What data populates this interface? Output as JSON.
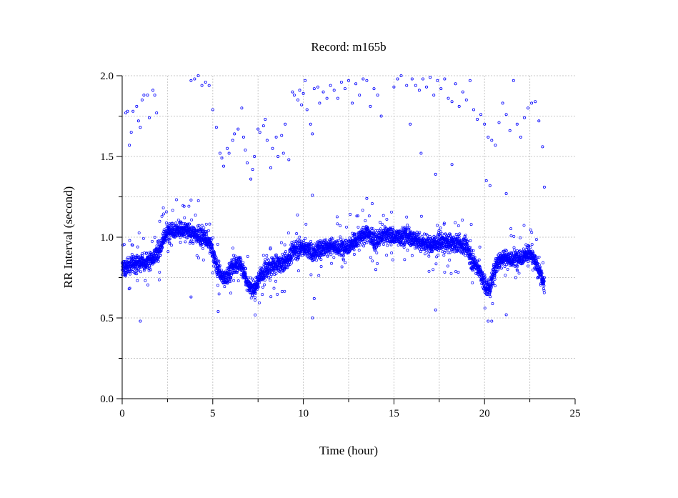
{
  "chart_data": {
    "type": "scatter",
    "title": "Record:  m165b",
    "xlabel": "Time (hour)",
    "ylabel": "RR Interval (second)",
    "xlim": [
      0,
      25
    ],
    "ylim": [
      0,
      2
    ],
    "x_ticks": [
      0,
      5,
      10,
      15,
      20,
      25
    ],
    "x_tick_labels": [
      "0",
      "5",
      "10",
      "15",
      "20",
      "25"
    ],
    "x_minor_ticks": [
      2.5,
      7.5,
      12.5,
      17.5,
      22.5
    ],
    "y_ticks": [
      0,
      0.5,
      1,
      1.5,
      2
    ],
    "y_tick_labels": [
      "0.0",
      "0.5",
      "1.0",
      "1.5",
      "2.0"
    ],
    "y_minor_ticks": [
      0.25,
      0.75,
      1.25,
      1.75
    ],
    "grid": true,
    "marker_color": "#0000ff",
    "series": [
      {
        "trend": [
          [
            0.0,
            0.8
          ],
          [
            0.5,
            0.83
          ],
          [
            1.0,
            0.84
          ],
          [
            1.5,
            0.86
          ],
          [
            2.0,
            0.9
          ],
          [
            2.3,
            1.0
          ],
          [
            2.7,
            1.05
          ],
          [
            3.5,
            1.04
          ],
          [
            4.5,
            1.0
          ],
          [
            4.9,
            0.95
          ],
          [
            5.2,
            0.82
          ],
          [
            5.6,
            0.74
          ],
          [
            6.0,
            0.8
          ],
          [
            6.5,
            0.84
          ],
          [
            7.0,
            0.7
          ],
          [
            7.3,
            0.67
          ],
          [
            7.6,
            0.76
          ],
          [
            8.0,
            0.8
          ],
          [
            8.5,
            0.83
          ],
          [
            9.0,
            0.84
          ],
          [
            9.5,
            0.92
          ],
          [
            10.0,
            0.94
          ],
          [
            10.5,
            0.9
          ],
          [
            11.0,
            0.93
          ],
          [
            11.5,
            0.95
          ],
          [
            12.0,
            0.93
          ],
          [
            12.5,
            0.95
          ],
          [
            13.0,
            0.98
          ],
          [
            13.5,
            1.03
          ],
          [
            14.0,
            0.97
          ],
          [
            14.5,
            1.02
          ],
          [
            15.0,
            1.0
          ],
          [
            15.5,
            1.01
          ],
          [
            16.0,
            0.99
          ],
          [
            16.5,
            0.97
          ],
          [
            17.0,
            0.95
          ],
          [
            17.5,
            0.97
          ],
          [
            18.0,
            0.96
          ],
          [
            18.5,
            0.96
          ],
          [
            19.0,
            0.94
          ],
          [
            19.3,
            0.86
          ],
          [
            19.7,
            0.8
          ],
          [
            20.0,
            0.7
          ],
          [
            20.3,
            0.68
          ],
          [
            20.6,
            0.82
          ],
          [
            21.0,
            0.88
          ],
          [
            21.5,
            0.86
          ],
          [
            22.0,
            0.88
          ],
          [
            22.5,
            0.9
          ],
          [
            23.0,
            0.8
          ],
          [
            23.3,
            0.7
          ]
        ],
        "outliers": [
          [
            0.2,
            1.77
          ],
          [
            0.3,
            1.78
          ],
          [
            0.4,
            1.57
          ],
          [
            0.5,
            1.65
          ],
          [
            0.6,
            1.78
          ],
          [
            0.8,
            1.81
          ],
          [
            0.9,
            1.72
          ],
          [
            1.0,
            1.68
          ],
          [
            1.1,
            1.85
          ],
          [
            1.2,
            1.88
          ],
          [
            1.4,
            1.88
          ],
          [
            1.5,
            1.74
          ],
          [
            1.7,
            1.91
          ],
          [
            1.8,
            1.88
          ],
          [
            1.9,
            1.77
          ],
          [
            3.8,
            1.97
          ],
          [
            4.0,
            1.98
          ],
          [
            4.2,
            2.0
          ],
          [
            4.4,
            1.94
          ],
          [
            4.6,
            1.96
          ],
          [
            4.8,
            1.94
          ],
          [
            5.0,
            1.79
          ],
          [
            5.2,
            1.68
          ],
          [
            5.4,
            1.52
          ],
          [
            5.5,
            1.49
          ],
          [
            5.6,
            1.44
          ],
          [
            5.8,
            1.55
          ],
          [
            5.9,
            1.52
          ],
          [
            6.1,
            1.6
          ],
          [
            6.2,
            1.64
          ],
          [
            6.4,
            1.67
          ],
          [
            6.6,
            1.8
          ],
          [
            6.7,
            1.62
          ],
          [
            6.8,
            1.54
          ],
          [
            6.9,
            1.46
          ],
          [
            7.1,
            1.36
          ],
          [
            7.2,
            1.42
          ],
          [
            7.3,
            1.5
          ],
          [
            7.5,
            1.67
          ],
          [
            7.6,
            1.65
          ],
          [
            7.8,
            1.69
          ],
          [
            7.9,
            1.73
          ],
          [
            8.0,
            1.6
          ],
          [
            8.2,
            1.43
          ],
          [
            8.3,
            1.55
          ],
          [
            8.5,
            1.62
          ],
          [
            8.6,
            1.5
          ],
          [
            8.8,
            1.63
          ],
          [
            8.9,
            1.52
          ],
          [
            9.0,
            1.7
          ],
          [
            9.2,
            1.48
          ],
          [
            9.4,
            1.9
          ],
          [
            9.5,
            1.88
          ],
          [
            9.7,
            1.85
          ],
          [
            9.8,
            1.91
          ],
          [
            9.9,
            1.82
          ],
          [
            10.0,
            1.89
          ],
          [
            10.1,
            1.97
          ],
          [
            10.2,
            1.79
          ],
          [
            10.4,
            1.7
          ],
          [
            10.5,
            1.64
          ],
          [
            10.6,
            1.92
          ],
          [
            10.8,
            1.93
          ],
          [
            10.9,
            1.83
          ],
          [
            11.1,
            1.9
          ],
          [
            11.3,
            1.86
          ],
          [
            11.5,
            1.94
          ],
          [
            11.7,
            1.91
          ],
          [
            11.9,
            1.86
          ],
          [
            12.1,
            1.96
          ],
          [
            12.3,
            1.92
          ],
          [
            12.5,
            1.97
          ],
          [
            12.7,
            1.83
          ],
          [
            12.9,
            1.95
          ],
          [
            13.1,
            1.88
          ],
          [
            13.3,
            1.98
          ],
          [
            13.5,
            1.97
          ],
          [
            13.7,
            1.81
          ],
          [
            13.9,
            1.92
          ],
          [
            14.1,
            1.88
          ],
          [
            14.3,
            1.75
          ],
          [
            15.0,
            1.93
          ],
          [
            15.2,
            1.98
          ],
          [
            15.4,
            2.0
          ],
          [
            15.7,
            1.94
          ],
          [
            15.9,
            1.7
          ],
          [
            16.0,
            1.98
          ],
          [
            16.2,
            1.94
          ],
          [
            16.4,
            1.91
          ],
          [
            16.6,
            1.98
          ],
          [
            16.8,
            1.93
          ],
          [
            17.0,
            1.99
          ],
          [
            17.2,
            1.88
          ],
          [
            17.4,
            1.97
          ],
          [
            17.6,
            1.92
          ],
          [
            17.8,
            1.98
          ],
          [
            18.0,
            1.86
          ],
          [
            18.2,
            1.84
          ],
          [
            18.4,
            1.95
          ],
          [
            18.6,
            1.81
          ],
          [
            18.8,
            1.9
          ],
          [
            19.0,
            1.85
          ],
          [
            19.2,
            1.97
          ],
          [
            19.4,
            1.79
          ],
          [
            19.6,
            1.73
          ],
          [
            19.8,
            1.76
          ],
          [
            20.0,
            1.7
          ],
          [
            20.2,
            1.62
          ],
          [
            20.4,
            1.6
          ],
          [
            20.6,
            1.57
          ],
          [
            20.8,
            1.71
          ],
          [
            21.0,
            1.83
          ],
          [
            21.2,
            1.76
          ],
          [
            21.4,
            1.66
          ],
          [
            21.6,
            1.97
          ],
          [
            21.8,
            1.7
          ],
          [
            22.0,
            1.62
          ],
          [
            22.2,
            1.74
          ],
          [
            22.4,
            1.8
          ],
          [
            22.6,
            1.83
          ],
          [
            22.8,
            1.84
          ],
          [
            23.0,
            1.72
          ],
          [
            23.2,
            1.56
          ],
          [
            23.3,
            1.31
          ],
          [
            16.5,
            1.52
          ],
          [
            17.3,
            1.39
          ],
          [
            18.2,
            1.45
          ],
          [
            20.1,
            1.35
          ],
          [
            20.3,
            1.32
          ],
          [
            21.2,
            1.27
          ],
          [
            10.5,
            1.26
          ],
          [
            13.5,
            1.24
          ],
          [
            3.8,
            1.23
          ],
          [
            3.8,
            0.63
          ],
          [
            10.5,
            0.5
          ],
          [
            10.6,
            0.62
          ],
          [
            14.0,
            0.8
          ],
          [
            1.0,
            0.48
          ],
          [
            5.3,
            0.54
          ],
          [
            17.3,
            0.55
          ],
          [
            20.2,
            0.48
          ],
          [
            20.4,
            0.48
          ],
          [
            21.2,
            0.52
          ],
          [
            23.3,
            0.75
          ]
        ]
      }
    ]
  }
}
